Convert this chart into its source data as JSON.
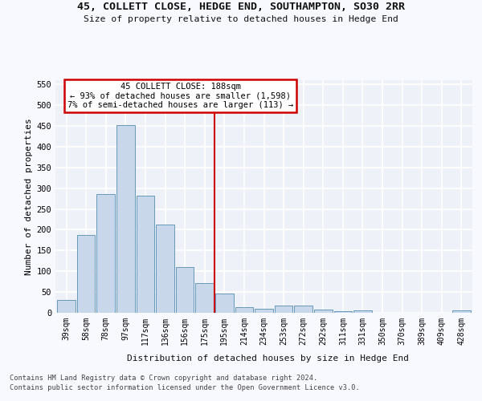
{
  "title": "45, COLLETT CLOSE, HEDGE END, SOUTHAMPTON, SO30 2RR",
  "subtitle": "Size of property relative to detached houses in Hedge End",
  "xlabel": "Distribution of detached houses by size in Hedge End",
  "ylabel": "Number of detached properties",
  "bar_color": "#c8d8ea",
  "bar_edge_color": "#6699bb",
  "fig_bg_color": "#f8f8ff",
  "ax_bg_color": "#eef2f8",
  "grid_color": "#ffffff",
  "categories": [
    "39sqm",
    "58sqm",
    "78sqm",
    "97sqm",
    "117sqm",
    "136sqm",
    "156sqm",
    "175sqm",
    "195sqm",
    "214sqm",
    "234sqm",
    "253sqm",
    "272sqm",
    "292sqm",
    "311sqm",
    "331sqm",
    "350sqm",
    "370sqm",
    "389sqm",
    "409sqm",
    "428sqm"
  ],
  "values": [
    30,
    187,
    285,
    452,
    282,
    212,
    110,
    71,
    46,
    14,
    10,
    18,
    18,
    8,
    4,
    5,
    0,
    0,
    0,
    0,
    5
  ],
  "vline_x": 7.5,
  "vline_color": "#cc0000",
  "anno_line1": "45 COLLETT CLOSE: 188sqm",
  "anno_line2": "← 93% of detached houses are smaller (1,598)",
  "anno_line3": "7% of semi-detached houses are larger (113) →",
  "anno_box_color": "#cc0000",
  "anno_bg": "#ffffff",
  "ylim": [
    0,
    560
  ],
  "yticks": [
    0,
    50,
    100,
    150,
    200,
    250,
    300,
    350,
    400,
    450,
    500,
    550
  ],
  "footer1": "Contains HM Land Registry data © Crown copyright and database right 2024.",
  "footer2": "Contains public sector information licensed under the Open Government Licence v3.0."
}
